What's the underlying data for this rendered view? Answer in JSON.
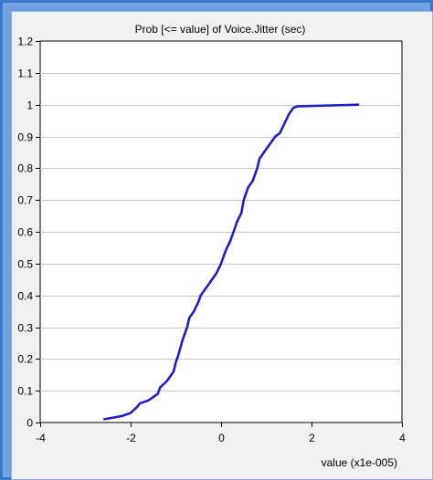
{
  "chart_data": {
    "type": "line",
    "title": "Prob [<= value] of Voice.Jitter (sec)",
    "xlabel": "value (x1e-005)",
    "ylabel": "",
    "xlim": [
      -4,
      4
    ],
    "ylim": [
      0,
      1.2
    ],
    "xticks": [
      -4,
      -2,
      0,
      2,
      4
    ],
    "yticks": [
      0,
      0.1,
      0.2,
      0.3,
      0.4,
      0.5,
      0.6,
      0.7,
      0.8,
      0.9,
      1,
      1.1,
      1.2
    ],
    "grid": true,
    "series": [
      {
        "color": "#1f1fc8",
        "x": [
          -2.6,
          -2.2,
          -2.0,
          -1.85,
          -1.8,
          -1.6,
          -1.4,
          -1.35,
          -1.2,
          -1.05,
          -1.0,
          -0.95,
          -0.85,
          -0.75,
          -0.7,
          -0.65,
          -0.6,
          -0.5,
          -0.45,
          -0.4,
          -0.3,
          -0.2,
          -0.1,
          0.0,
          0.1,
          0.2,
          0.25,
          0.3,
          0.35,
          0.45,
          0.5,
          0.55,
          0.6,
          0.7,
          0.75,
          0.8,
          0.85,
          0.95,
          1.0,
          1.05,
          1.1,
          1.15,
          1.2,
          1.3,
          1.4,
          1.5,
          1.55,
          1.6,
          1.7,
          1.75,
          3.05
        ],
        "y": [
          0.01,
          0.02,
          0.03,
          0.05,
          0.06,
          0.07,
          0.09,
          0.11,
          0.13,
          0.16,
          0.19,
          0.21,
          0.26,
          0.3,
          0.33,
          0.34,
          0.35,
          0.38,
          0.4,
          0.41,
          0.43,
          0.45,
          0.47,
          0.5,
          0.54,
          0.57,
          0.59,
          0.61,
          0.63,
          0.66,
          0.7,
          0.72,
          0.74,
          0.76,
          0.78,
          0.8,
          0.83,
          0.85,
          0.86,
          0.87,
          0.88,
          0.89,
          0.9,
          0.91,
          0.94,
          0.97,
          0.98,
          0.99,
          0.995,
          0.995,
          1.0
        ]
      }
    ]
  }
}
